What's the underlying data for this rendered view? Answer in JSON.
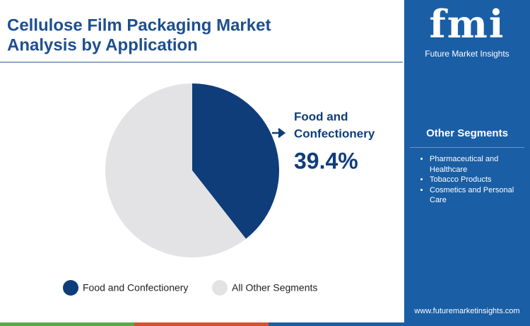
{
  "chart_data": {
    "type": "pie",
    "title": [
      "Cellulose Film Packaging Market",
      "Analysis by Application"
    ],
    "categories": [
      "Food and Confectionery",
      "All Other Segments"
    ],
    "values": [
      39.4,
      60.6
    ],
    "value_labels": [
      "39.4%",
      null
    ],
    "colors": [
      "#0e3d7a",
      "#e3e3e5"
    ],
    "annotation": [
      "Food and",
      "Confectionery"
    ]
  },
  "panel": {
    "logo": "fmi",
    "brand": "Future Market Insights",
    "heading": "Other Segments",
    "items": [
      "Pharmaceutical and Healthcare",
      "Tobacco Products",
      "Cosmetics and Personal Care"
    ],
    "url": "www.futuremarketinsights.com"
  }
}
